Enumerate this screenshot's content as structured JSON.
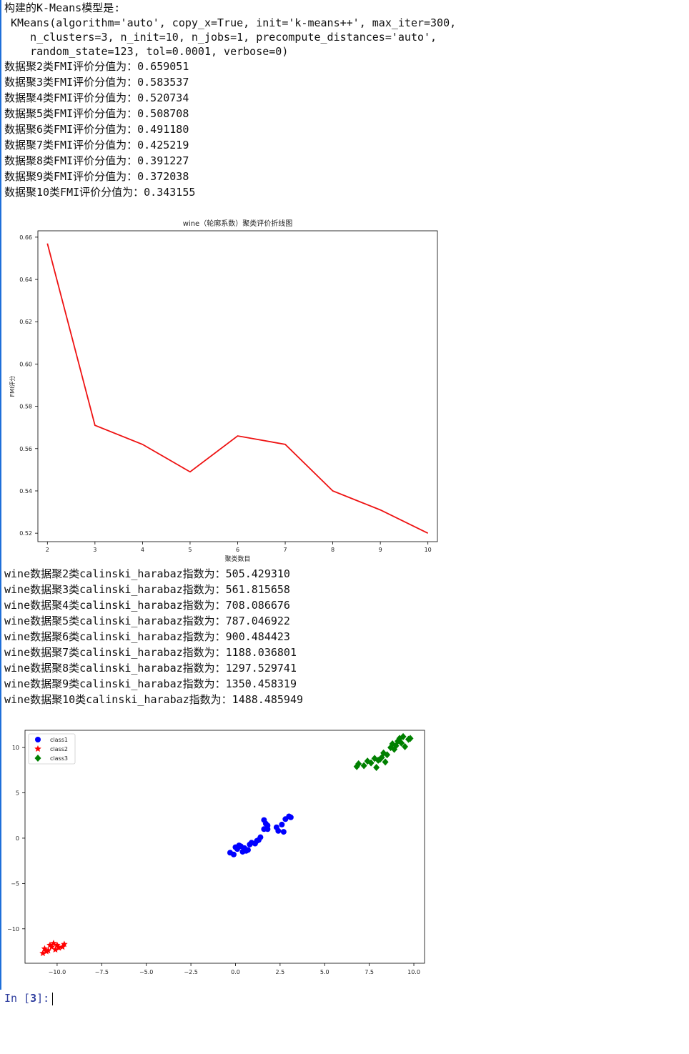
{
  "output_text": {
    "model_heading": "构建的K-Means模型是:",
    "model_repr": [
      " KMeans(algorithm='auto', copy_x=True, init='k-means++', max_iter=300,",
      "    n_clusters=3, n_init=10, n_jobs=1, precompute_distances='auto',",
      "    random_state=123, tol=0.0001, verbose=0)"
    ],
    "fmi_lines": [
      "数据聚2类FMI评价分值为：0.659051",
      "数据聚3类FMI评价分值为：0.583537",
      "数据聚4类FMI评价分值为：0.520734",
      "数据聚5类FMI评价分值为：0.508708",
      "数据聚6类FMI评价分值为：0.491180",
      "数据聚7类FMI评价分值为：0.425219",
      "数据聚8类FMI评价分值为：0.391227",
      "数据聚9类FMI评价分值为：0.372038",
      "数据聚10类FMI评价分值为：0.343155"
    ],
    "ch_lines": [
      "wine数据聚2类calinski_harabaz指数为：505.429310",
      "wine数据聚3类calinski_harabaz指数为：561.815658",
      "wine数据聚4类calinski_harabaz指数为：708.086676",
      "wine数据聚5类calinski_harabaz指数为：787.046922",
      "wine数据聚6类calinski_harabaz指数为：900.484423",
      "wine数据聚7类calinski_harabaz指数为：1188.036801",
      "wine数据聚8类calinski_harabaz指数为：1297.529741",
      "wine数据聚9类calinski_harabaz指数为：1350.458319",
      "wine数据聚10类calinski_harabaz指数为：1488.485949"
    ]
  },
  "prompt": {
    "label": "In [",
    "number": "3",
    "suffix": "]:"
  },
  "colors": {
    "line": "#ee1111",
    "class1": "#0000ff",
    "class2": "#ff0000",
    "class3": "#008000",
    "prompt": "#303f9f"
  },
  "chart_data": [
    {
      "type": "line",
      "title": "wine（轮廓系数）聚类评价折线图",
      "xlabel": "聚类数目",
      "ylabel": "FMI评分",
      "x": [
        2,
        3,
        4,
        5,
        6,
        7,
        8,
        9,
        10
      ],
      "series": [
        {
          "values": [
            0.657,
            0.571,
            0.562,
            0.549,
            0.566,
            0.562,
            0.54,
            0.531,
            0.52
          ]
        }
      ],
      "xticks": [
        2,
        3,
        4,
        5,
        6,
        7,
        8,
        9,
        10
      ],
      "yticks": [
        0.52,
        0.54,
        0.56,
        0.58,
        0.6,
        0.62,
        0.64,
        0.66
      ],
      "ylim": [
        0.516,
        0.663
      ],
      "xlim": [
        1.8,
        10.2
      ],
      "grid": false
    },
    {
      "type": "scatter",
      "xticks": [
        -10.0,
        -7.5,
        -5.0,
        -2.5,
        0.0,
        2.5,
        5.0,
        7.5,
        10.0
      ],
      "xtick_labels": [
        "−10.0",
        "−7.5",
        "−5.0",
        "−2.5",
        "0.0",
        "2.5",
        "5.0",
        "7.5",
        "10.0"
      ],
      "yticks": [
        10,
        5,
        0,
        -5,
        -10
      ],
      "ytick_labels": [
        "10",
        "5",
        "0",
        "−5",
        "−10"
      ],
      "xlim": [
        -11.8,
        10.6
      ],
      "ylim": [
        -13.8,
        11.9
      ],
      "legend_position": "top-left",
      "grid": false,
      "series": [
        {
          "name": "class1",
          "marker": "circle",
          "color": "#0000ff",
          "points": [
            [
              -0.3,
              -1.6
            ],
            [
              -0.1,
              -1.8
            ],
            [
              0.0,
              -1.0
            ],
            [
              0.2,
              -0.8
            ],
            [
              0.1,
              -1.2
            ],
            [
              0.4,
              -1.5
            ],
            [
              0.5,
              -1.1
            ],
            [
              0.7,
              -1.3
            ],
            [
              0.8,
              -0.7
            ],
            [
              0.9,
              -0.5
            ],
            [
              1.1,
              -0.6
            ],
            [
              1.2,
              -0.3
            ],
            [
              1.4,
              0.1
            ],
            [
              1.6,
              1.0
            ],
            [
              1.7,
              1.6
            ],
            [
              1.8,
              1.4
            ],
            [
              1.6,
              2.0
            ],
            [
              1.8,
              1.0
            ],
            [
              2.3,
              1.2
            ],
            [
              2.4,
              0.8
            ],
            [
              2.6,
              1.5
            ],
            [
              2.7,
              0.7
            ],
            [
              2.8,
              2.1
            ],
            [
              3.0,
              2.4
            ],
            [
              3.1,
              2.3
            ],
            [
              0.3,
              -0.9
            ],
            [
              0.6,
              -1.4
            ],
            [
              1.3,
              -0.2
            ]
          ]
        },
        {
          "name": "class2",
          "marker": "star",
          "color": "#ff0000",
          "points": [
            [
              -10.8,
              -12.7
            ],
            [
              -10.7,
              -12.2
            ],
            [
              -10.5,
              -12.4
            ],
            [
              -10.4,
              -11.8
            ],
            [
              -10.2,
              -11.6
            ],
            [
              -10.0,
              -11.8
            ],
            [
              -10.1,
              -12.3
            ],
            [
              -9.9,
              -12.1
            ],
            [
              -9.7,
              -12.0
            ],
            [
              -9.6,
              -11.7
            ],
            [
              -10.3,
              -12.0
            ],
            [
              -10.6,
              -12.5
            ]
          ]
        },
        {
          "name": "class3",
          "marker": "diamond",
          "color": "#008000",
          "points": [
            [
              6.8,
              7.9
            ],
            [
              6.9,
              8.2
            ],
            [
              7.2,
              8.0
            ],
            [
              7.4,
              8.5
            ],
            [
              7.6,
              8.3
            ],
            [
              7.8,
              8.8
            ],
            [
              7.9,
              7.8
            ],
            [
              8.0,
              8.6
            ],
            [
              8.2,
              8.9
            ],
            [
              8.3,
              9.4
            ],
            [
              8.4,
              8.4
            ],
            [
              8.5,
              9.2
            ],
            [
              8.7,
              10.0
            ],
            [
              8.8,
              10.4
            ],
            [
              9.0,
              10.2
            ],
            [
              9.1,
              10.7
            ],
            [
              9.2,
              11.0
            ],
            [
              9.3,
              10.5
            ],
            [
              9.4,
              11.2
            ],
            [
              9.5,
              10.1
            ],
            [
              9.7,
              10.9
            ],
            [
              9.8,
              11.0
            ],
            [
              8.9,
              9.8
            ],
            [
              8.1,
              8.7
            ]
          ]
        }
      ]
    }
  ]
}
